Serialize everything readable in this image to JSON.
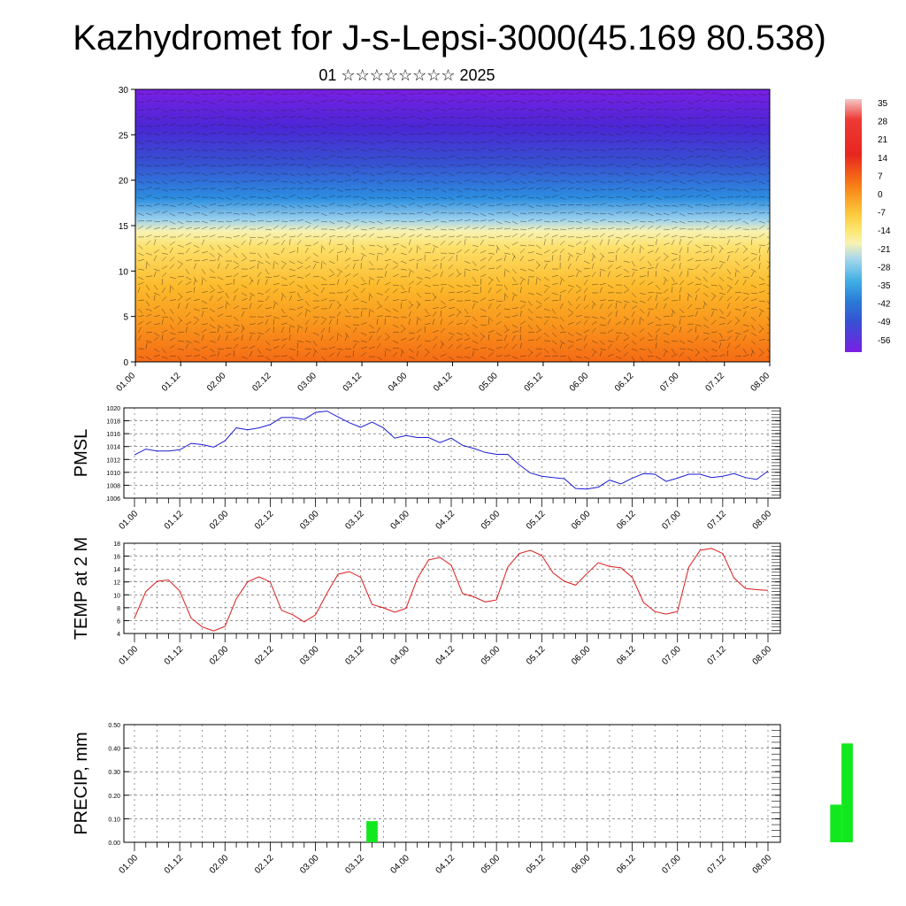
{
  "page": {
    "title": "Kazhydromet for J-s-Lepsi-3000(45.169 80.538)",
    "subtitle": "01 ☆☆☆☆☆☆☆☆ 2025"
  },
  "colorbar": {
    "labels": [
      "35",
      "28",
      "21",
      "14",
      "7",
      "0",
      "-7",
      "-14",
      "-21",
      "-28",
      "-35",
      "-42",
      "-49",
      "-56"
    ],
    "colors": [
      "#f4c6c6",
      "#ee3a35",
      "#e8261f",
      "#f04a10",
      "#f77d16",
      "#fbae21",
      "#fce15a",
      "#f7f2b3",
      "#a9d8ec",
      "#3faee4",
      "#2b7ad6",
      "#3651d2",
      "#4a27d6",
      "#6c1edc"
    ]
  },
  "chart_data": [
    {
      "type": "heatmap",
      "name": "temperature-wind-cross-section",
      "x_ticks": [
        "01.00",
        "01.12",
        "02.00",
        "02.12",
        "03.00",
        "03.12",
        "04.00",
        "04.12",
        "05.00",
        "05.12",
        "06.00",
        "06.12",
        "07.00",
        "07.12",
        "08.00"
      ],
      "y_ticks": [
        "0",
        "5",
        "10",
        "15",
        "20",
        "25",
        "30"
      ],
      "ylim": [
        0,
        30
      ],
      "zlim": [
        -56,
        35
      ],
      "zero_line_level": 15,
      "grid": false
    },
    {
      "type": "line",
      "name": "PMSL",
      "ylabel": "PMSL",
      "color": "#1c1cd6",
      "x_ticks": [
        "01.00",
        "01.12",
        "02.00",
        "02.12",
        "03.00",
        "03.12",
        "04.00",
        "04.12",
        "05.00",
        "05.12",
        "06.00",
        "06.12",
        "07.00",
        "07.12",
        "08.00"
      ],
      "y_ticks": [
        "1006",
        "1008",
        "1010",
        "1012",
        "1014",
        "1016",
        "1018",
        "1020"
      ],
      "ylim": [
        1006,
        1020
      ],
      "grid": true,
      "values": [
        1012.7,
        1013.6,
        1013.3,
        1013.3,
        1013.5,
        1014.5,
        1014.3,
        1013.9,
        1014.9,
        1016.9,
        1016.6,
        1016.9,
        1017.4,
        1018.5,
        1018.5,
        1018.2,
        1019.3,
        1019.5,
        1018.6,
        1017.7,
        1017.0,
        1017.8,
        1016.9,
        1015.3,
        1015.7,
        1015.4,
        1015.4,
        1014.6,
        1015.3,
        1014.2,
        1013.7,
        1013.1,
        1012.8,
        1012.8,
        1011.2,
        1009.9,
        1009.4,
        1009.2,
        1009.0,
        1007.5,
        1007.4,
        1007.7,
        1008.8,
        1008.2,
        1009.1,
        1009.8,
        1009.7,
        1008.6,
        1009.1,
        1009.7,
        1009.7,
        1009.2,
        1009.4,
        1009.8,
        1009.2,
        1008.9,
        1010.2
      ]
    },
    {
      "type": "line",
      "name": "TEMP at 2 M",
      "ylabel": "TEMP at 2 M",
      "color": "#dc1a1a",
      "x_ticks": [
        "01.00",
        "01.12",
        "02.00",
        "02.12",
        "03.00",
        "03.12",
        "04.00",
        "04.12",
        "05.00",
        "05.12",
        "06.00",
        "06.12",
        "07.00",
        "07.12",
        "08.00"
      ],
      "y_ticks": [
        "4",
        "6",
        "8",
        "10",
        "12",
        "14",
        "16",
        "18"
      ],
      "ylim": [
        4,
        18
      ],
      "grid": true,
      "values": [
        6.4,
        10.5,
        12.1,
        12.3,
        10.6,
        6.4,
        5.0,
        4.4,
        5.1,
        9.4,
        12.0,
        12.8,
        12.0,
        7.6,
        6.9,
        5.8,
        6.9,
        10.2,
        13.2,
        13.6,
        12.7,
        8.5,
        8.0,
        7.3,
        7.9,
        12.5,
        15.4,
        15.8,
        14.6,
        10.2,
        9.7,
        8.9,
        9.2,
        14.3,
        16.4,
        16.9,
        16.1,
        13.4,
        12.1,
        11.5,
        13.3,
        15.0,
        14.4,
        14.2,
        12.7,
        8.8,
        7.4,
        7.0,
        7.4,
        14.3,
        16.9,
        17.2,
        16.4,
        12.6,
        11.0,
        10.8,
        10.7
      ]
    },
    {
      "type": "bar",
      "name": "PRECIP, mm",
      "ylabel": "PRECIP, mm",
      "color": "#12e81e",
      "x_ticks": [
        "01.00",
        "01.12",
        "02.00",
        "02.12",
        "03.00",
        "03.12",
        "04.00",
        "04.12",
        "05.00",
        "05.12",
        "06.00",
        "06.12",
        "07.00",
        "07.12",
        "08.00"
      ],
      "y_ticks": [
        "0.00",
        "0.10",
        "0.20",
        "0.30",
        "0.40",
        "0.50"
      ],
      "ylim": [
        0,
        0.5
      ],
      "grid": true,
      "bars": [
        {
          "x_step": 21,
          "value": 0.09
        },
        {
          "x_step": 62,
          "value": 0.16
        },
        {
          "x_step": 63,
          "value": 0.42
        }
      ]
    }
  ]
}
